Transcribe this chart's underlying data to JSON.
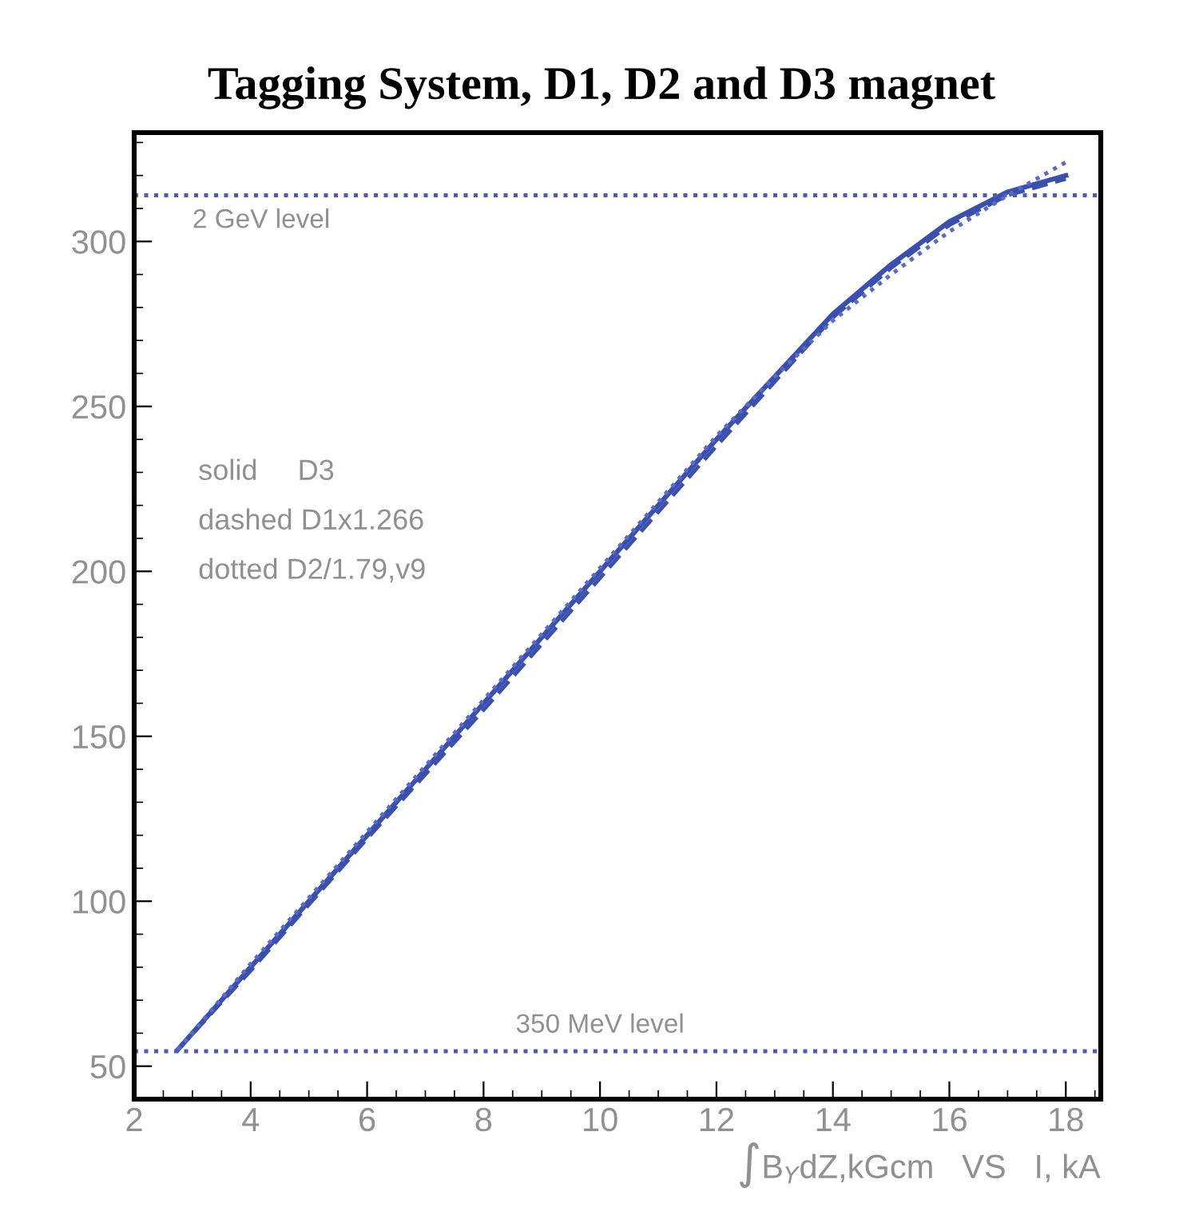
{
  "chart_data": {
    "type": "line",
    "title": "Tagging System, D1, D2 and D3 magnet",
    "xlabel": "∫B$_{Y}$dZ,kGcm   VS   I, kA",
    "xlim": [
      2,
      18.6
    ],
    "xticks": [
      2,
      4,
      6,
      8,
      10,
      12,
      14,
      16,
      18
    ],
    "ylim": [
      40,
      333
    ],
    "yticks": [
      50,
      100,
      150,
      200,
      250,
      300
    ],
    "grid": false,
    "series": [
      {
        "color": "#3a4fae",
        "line_style": "solid",
        "x": [
          2.75,
          4,
          6,
          8,
          10,
          12,
          14,
          15,
          16,
          17,
          18
        ],
        "values": [
          55,
          80,
          120,
          160,
          200,
          240,
          278,
          293,
          306,
          315,
          320
        ]
      },
      {
        "color": "#3a4fae",
        "line_style": "dashed",
        "x": [
          2.75,
          4,
          6,
          8,
          10,
          12,
          14,
          15,
          16,
          17,
          18
        ],
        "values": [
          55,
          79,
          119,
          158,
          198,
          238,
          277,
          292,
          305,
          314,
          319
        ]
      },
      {
        "color": "#5a6ac8",
        "line_style": "dotted",
        "x": [
          2.75,
          4,
          6,
          8,
          10,
          12,
          13,
          14,
          15,
          16,
          17,
          18
        ],
        "values": [
          55,
          81,
          121,
          161,
          201,
          241,
          259,
          276,
          290,
          303,
          314,
          324
        ]
      }
    ],
    "ref_lines": [
      {
        "axis": "y",
        "value": 314,
        "label": "2 GeV level",
        "color": "#4a5ac0",
        "line_style": "dotted"
      },
      {
        "axis": "y",
        "value": 54.5,
        "label": "350 MeV level",
        "color": "#4a5ac0",
        "line_style": "dotted"
      }
    ],
    "annotations": [
      "solid     D3",
      "dashed D1x1.266",
      "dotted D2/1.79,v9"
    ]
  }
}
